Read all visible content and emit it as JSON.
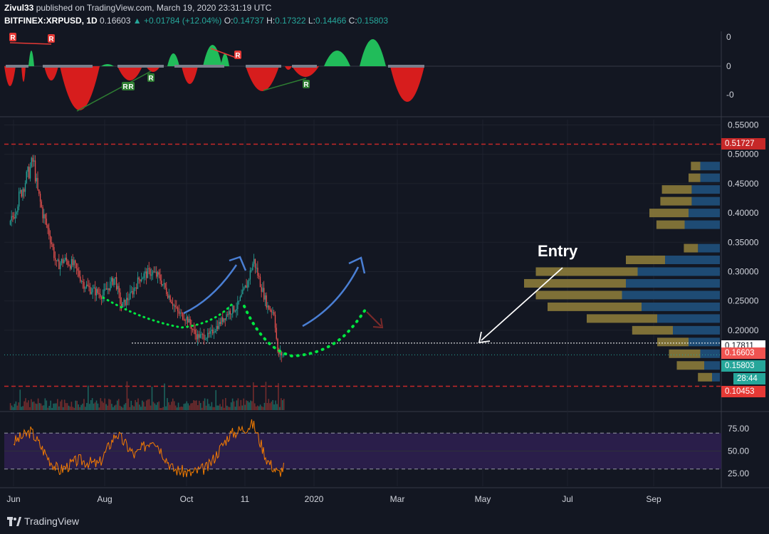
{
  "header": {
    "author": "Zivul33",
    "published": "published on TradingView.com, March 19, 2020 23:31:19 UTC",
    "symbol": "BITFINEX:XRPUSD, 1D",
    "last": "0.16603",
    "change": "+0.01784 (+12.04%)",
    "open_label": "O:",
    "open": "0.14737",
    "high_label": "H:",
    "high": "0.17322",
    "low_label": "L:",
    "low": "0.14466",
    "close_label": "C:",
    "close": "0.15803"
  },
  "annotation": {
    "entry_text": "Entry"
  },
  "price_tags": {
    "resistance": "0.51727",
    "entry_level": "0.17811",
    "last_price": "0.16603",
    "close_price": "0.15803",
    "countdown": "28:44",
    "support": "0.10453"
  },
  "oscillator": {
    "ticks": [
      "0",
      "0",
      "-0"
    ],
    "divergence_labels": [
      "R",
      "R",
      "R",
      "R",
      "R",
      "R",
      "R"
    ]
  },
  "rsi": {
    "ticks": [
      "75.00",
      "50.00",
      "25.00"
    ],
    "upper": 70,
    "lower": 30
  },
  "footer": {
    "brand": "TradingView"
  },
  "colors": {
    "background": "#131722",
    "up": "#26a69a",
    "down": "#ef5350",
    "resistance": "#c62828",
    "rsi_line": "#f57c00",
    "rsi_band": "#2a1e4a",
    "arrow_blue": "#4a7fd4",
    "dots_green": "#00e640",
    "vp_gold": "#8b7a3a",
    "vp_blue": "#1f4e79"
  },
  "chart_data": {
    "type": "candlestick",
    "symbol": "BITFINEX:XRPUSD",
    "interval": "1D",
    "x_ticks": [
      "Jun",
      "Aug",
      "Oct",
      "11",
      "2020",
      "Mar",
      "May",
      "Jul",
      "Sep"
    ],
    "y_ticks": [
      "0.55000",
      "0.50000",
      "0.45000",
      "0.40000",
      "0.35000",
      "0.30000",
      "0.25000",
      "0.20000"
    ],
    "ylim": [
      0.1,
      0.56
    ],
    "close_path": [
      {
        "x": "2019-05-28",
        "y": 0.38
      },
      {
        "x": "2019-06-05",
        "y": 0.42
      },
      {
        "x": "2019-06-12",
        "y": 0.45
      },
      {
        "x": "2019-06-22",
        "y": 0.49
      },
      {
        "x": "2019-06-26",
        "y": 0.44
      },
      {
        "x": "2019-07-02",
        "y": 0.4
      },
      {
        "x": "2019-07-10",
        "y": 0.36
      },
      {
        "x": "2019-07-17",
        "y": 0.31
      },
      {
        "x": "2019-07-25",
        "y": 0.32
      },
      {
        "x": "2019-08-05",
        "y": 0.31
      },
      {
        "x": "2019-08-15",
        "y": 0.28
      },
      {
        "x": "2019-08-22",
        "y": 0.27
      },
      {
        "x": "2019-09-05",
        "y": 0.26
      },
      {
        "x": "2019-09-18",
        "y": 0.29
      },
      {
        "x": "2019-09-25",
        "y": 0.24
      },
      {
        "x": "2019-10-05",
        "y": 0.26
      },
      {
        "x": "2019-10-15",
        "y": 0.29
      },
      {
        "x": "2019-10-27",
        "y": 0.3
      },
      {
        "x": "2019-11-05",
        "y": 0.29
      },
      {
        "x": "2019-11-15",
        "y": 0.26
      },
      {
        "x": "2019-11-25",
        "y": 0.23
      },
      {
        "x": "2019-12-05",
        "y": 0.22
      },
      {
        "x": "2019-12-15",
        "y": 0.19
      },
      {
        "x": "2019-12-28",
        "y": 0.19
      },
      {
        "x": "2020-01-08",
        "y": 0.21
      },
      {
        "x": "2020-01-18",
        "y": 0.23
      },
      {
        "x": "2020-01-28",
        "y": 0.24
      },
      {
        "x": "2020-02-08",
        "y": 0.28
      },
      {
        "x": "2020-02-15",
        "y": 0.32
      },
      {
        "x": "2020-02-22",
        "y": 0.28
      },
      {
        "x": "2020-03-01",
        "y": 0.24
      },
      {
        "x": "2020-03-08",
        "y": 0.23
      },
      {
        "x": "2020-03-12",
        "y": 0.16
      },
      {
        "x": "2020-03-19",
        "y": 0.158
      }
    ],
    "horizontal_levels": [
      {
        "name": "resistance",
        "value": 0.51727
      },
      {
        "name": "entry",
        "value": 0.17811
      },
      {
        "name": "support",
        "value": 0.10453
      }
    ],
    "volume_profile": [
      {
        "price": 0.48,
        "up": 0.012,
        "down": 0.025
      },
      {
        "price": 0.46,
        "up": 0.015,
        "down": 0.025
      },
      {
        "price": 0.44,
        "up": 0.038,
        "down": 0.036
      },
      {
        "price": 0.42,
        "up": 0.04,
        "down": 0.036
      },
      {
        "price": 0.4,
        "up": 0.05,
        "down": 0.04
      },
      {
        "price": 0.38,
        "up": 0.036,
        "down": 0.045
      },
      {
        "price": 0.34,
        "up": 0.018,
        "down": 0.028
      },
      {
        "price": 0.32,
        "up": 0.05,
        "down": 0.07
      },
      {
        "price": 0.3,
        "up": 0.13,
        "down": 0.105
      },
      {
        "price": 0.28,
        "up": 0.13,
        "down": 0.12
      },
      {
        "price": 0.26,
        "up": 0.11,
        "down": 0.125
      },
      {
        "price": 0.24,
        "up": 0.12,
        "down": 0.1
      },
      {
        "price": 0.22,
        "up": 0.09,
        "down": 0.08
      },
      {
        "price": 0.2,
        "up": 0.052,
        "down": 0.06
      },
      {
        "price": 0.18,
        "up": 0.04,
        "down": 0.04
      },
      {
        "price": 0.16,
        "up": 0.04,
        "down": 0.025
      },
      {
        "price": 0.14,
        "up": 0.035,
        "down": 0.02
      },
      {
        "price": 0.12,
        "up": 0.018,
        "down": 0.01
      }
    ],
    "rsi_series": [
      {
        "x": "2019-06-01",
        "y": 60
      },
      {
        "x": "2019-06-20",
        "y": 72
      },
      {
        "x": "2019-07-10",
        "y": 40
      },
      {
        "x": "2019-07-20",
        "y": 28
      },
      {
        "x": "2019-08-10",
        "y": 40
      },
      {
        "x": "2019-09-01",
        "y": 35
      },
      {
        "x": "2019-09-20",
        "y": 70
      },
      {
        "x": "2019-10-10",
        "y": 45
      },
      {
        "x": "2019-10-30",
        "y": 65
      },
      {
        "x": "2019-11-20",
        "y": 30
      },
      {
        "x": "2019-12-10",
        "y": 25
      },
      {
        "x": "2019-12-28",
        "y": 32
      },
      {
        "x": "2020-01-20",
        "y": 68
      },
      {
        "x": "2020-02-15",
        "y": 80
      },
      {
        "x": "2020-03-01",
        "y": 40
      },
      {
        "x": "2020-03-13",
        "y": 25
      },
      {
        "x": "2020-03-19",
        "y": 32
      }
    ]
  }
}
